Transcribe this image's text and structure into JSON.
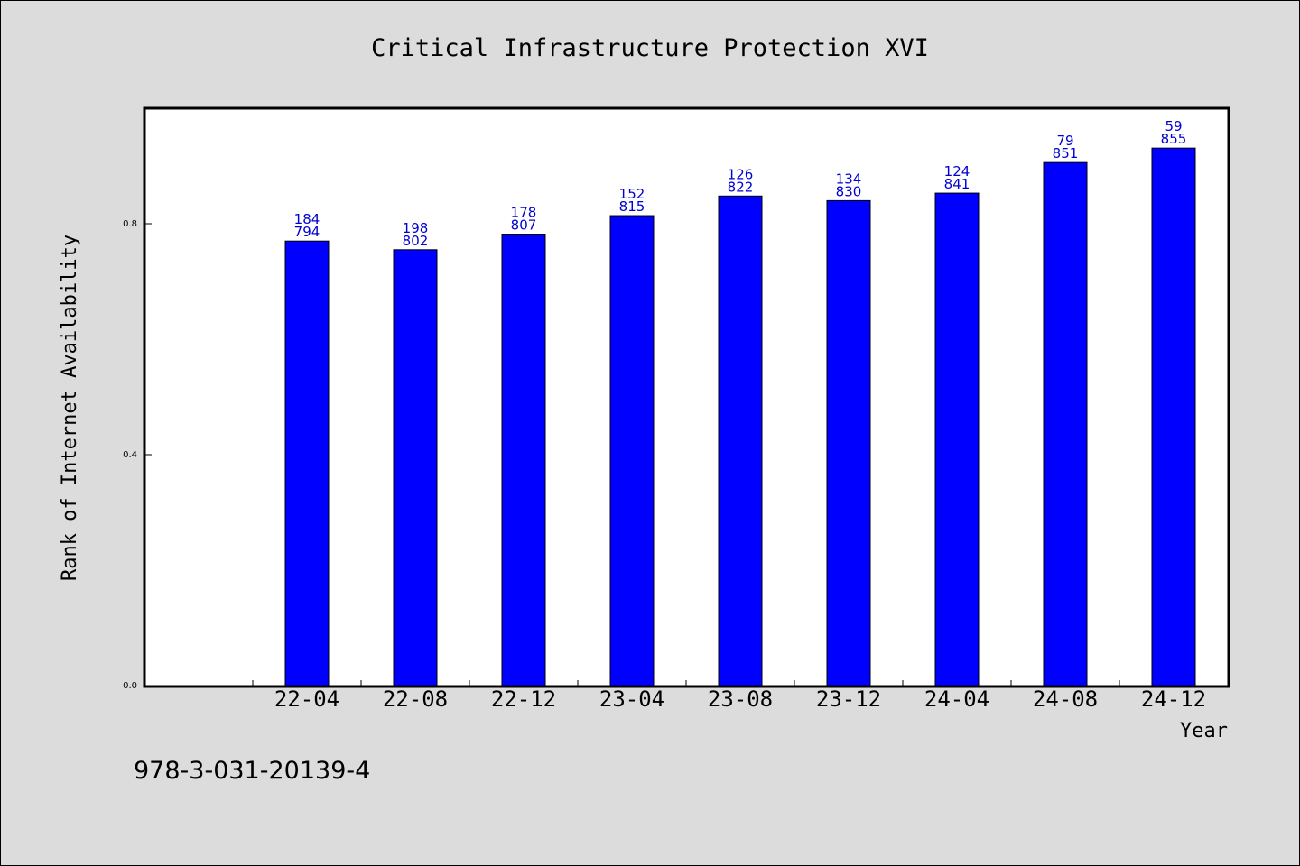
{
  "chart_data": {
    "type": "bar",
    "title": "Critical Infrastructure Protection XVI",
    "xlabel": "Year",
    "ylabel": "Rank of Internet Availability",
    "categories": [
      "22-04",
      "22-08",
      "22-12",
      "23-04",
      "23-08",
      "23-12",
      "24-04",
      "24-08",
      "24-12"
    ],
    "values": [
      0.77,
      0.755,
      0.782,
      0.814,
      0.848,
      0.84,
      0.853,
      0.906,
      0.931
    ],
    "data_labels": [
      {
        "top": "184",
        "bottom": "794"
      },
      {
        "top": "198",
        "bottom": "802"
      },
      {
        "top": "178",
        "bottom": "807"
      },
      {
        "top": "152",
        "bottom": "815"
      },
      {
        "top": "126",
        "bottom": "822"
      },
      {
        "top": "134",
        "bottom": "830"
      },
      {
        "top": "124",
        "bottom": "841"
      },
      {
        "top": "79",
        "bottom": "851"
      },
      {
        "top": "59",
        "bottom": "855"
      }
    ],
    "yticks": [
      {
        "value": 0.0,
        "label": "0.0"
      },
      {
        "value": 0.4,
        "label": "0.4"
      },
      {
        "value": 0.8,
        "label": "0.8"
      }
    ],
    "ylim": [
      0,
      1.0
    ],
    "grid": false,
    "bar_color": "#0000ff",
    "label_color": "#0000d0",
    "background_color": "#dcdcdc",
    "plot_background": "#ffffff"
  },
  "footer": {
    "isbn": "978-3-031-20139-4"
  }
}
